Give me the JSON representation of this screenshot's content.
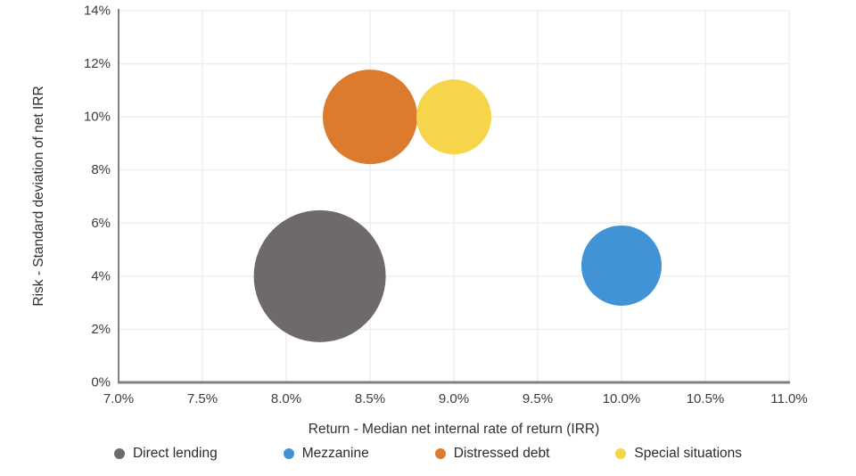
{
  "chart_data": {
    "type": "scatter",
    "subtype": "bubble",
    "xlabel": "Return - Median net internal rate of return (IRR)",
    "ylabel": "Risk - Standard deviation of net IRR",
    "xlim": [
      7.0,
      11.0
    ],
    "ylim": [
      0,
      14
    ],
    "xticks": {
      "values": [
        7.0,
        7.5,
        8.0,
        8.5,
        9.0,
        9.5,
        10.0,
        10.5,
        11.0
      ],
      "labels": [
        "7.0%",
        "7.5%",
        "8.0%",
        "8.5%",
        "9.0%",
        "9.5%",
        "10.0%",
        "10.5%",
        "11.0%"
      ]
    },
    "yticks": {
      "values": [
        0,
        2,
        4,
        6,
        8,
        10,
        12,
        14
      ],
      "labels": [
        "0%",
        "2%",
        "4%",
        "6%",
        "8%",
        "10%",
        "12%",
        "14%"
      ]
    },
    "grid": true,
    "legend_position": "bottom",
    "series": [
      {
        "name": "Direct lending",
        "x": 8.2,
        "y": 4.0,
        "bubble_radius_px": 74,
        "color": "#6D6A69"
      },
      {
        "name": "Mezzanine",
        "x": 10.0,
        "y": 4.4,
        "bubble_radius_px": 45,
        "color": "#4293D5"
      },
      {
        "name": "Distressed debt",
        "x": 8.5,
        "y": 10.0,
        "bubble_radius_px": 53,
        "color": "#DC7B2D"
      },
      {
        "name": "Special situations",
        "x": 9.0,
        "y": 10.0,
        "bubble_radius_px": 42,
        "color": "#F6D54A"
      }
    ],
    "colors": {
      "grid": "#efefef",
      "axis": "#808080",
      "tick_text": "#3c3c3c",
      "axis_title_text": "#303030",
      "legend_text": "#2b2b2b",
      "background": "#ffffff"
    }
  }
}
